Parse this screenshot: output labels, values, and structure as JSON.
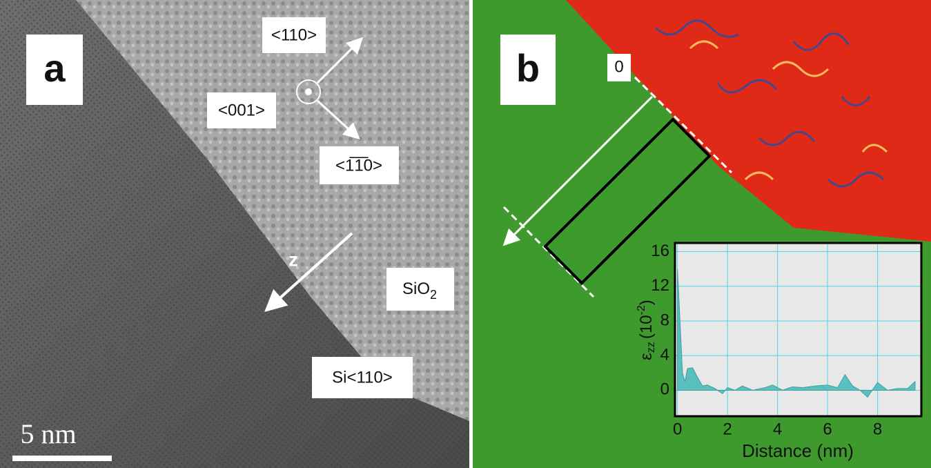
{
  "panels": {
    "a": {
      "label": "a",
      "dir_110": "<110>",
      "dir_001": "<001>",
      "dir_1bar1bar0": "<1̅1̅0>",
      "z": "z",
      "oxide": {
        "base": "SiO",
        "sub": "2"
      },
      "silicon": "Si<110>",
      "scale": "5 nm"
    },
    "b": {
      "label": "b",
      "origin": "0"
    }
  },
  "chart_data": {
    "type": "area",
    "xlabel": "Distance (nm)",
    "ylabel_parts": [
      "ε",
      "zz",
      "(10",
      "-2",
      ")"
    ],
    "color": "#5bbfc0",
    "grid_color": "#4fd6e0",
    "x": [
      0,
      0.1,
      0.2,
      0.3,
      0.4,
      0.6,
      0.8,
      1.0,
      1.2,
      1.5,
      1.8,
      2.0,
      2.3,
      2.6,
      3.0,
      3.5,
      3.8,
      4.2,
      4.6,
      5.0,
      5.5,
      6.0,
      6.4,
      6.7,
      7.0,
      7.3,
      7.6,
      8.0,
      8.4,
      8.8,
      9.2,
      9.5
    ],
    "values": [
      14,
      8,
      2,
      1,
      2.5,
      2.6,
      1.5,
      0.5,
      0.6,
      0.2,
      -0.4,
      0.3,
      0,
      0.5,
      0,
      0.3,
      0.6,
      0,
      0.4,
      0.3,
      0.5,
      0.6,
      0.3,
      1.8,
      0.5,
      0,
      -0.8,
      0.9,
      0,
      0.2,
      0.2,
      1.0
    ],
    "xlim": [
      -0.1,
      9.75
    ],
    "ylim": [
      -3,
      17
    ],
    "xticks": [
      0,
      2,
      4,
      6,
      8
    ],
    "yticks": [
      0,
      4,
      8,
      12,
      16
    ],
    "grid": true
  }
}
